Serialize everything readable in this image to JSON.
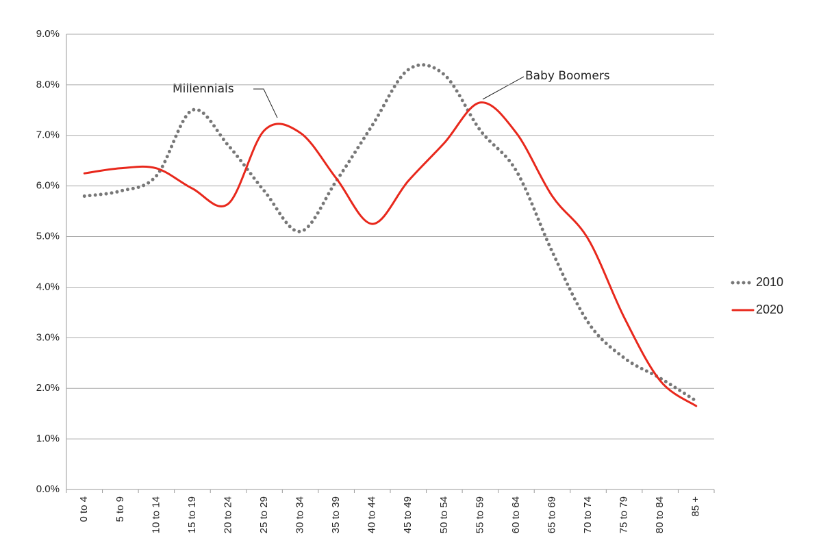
{
  "chart_data": {
    "type": "line",
    "categories": [
      "0 to 4",
      "5 to 9",
      "10 to 14",
      "15 to 19",
      "20 to 24",
      "25 to 29",
      "30 to 34",
      "35 to 39",
      "40 to 44",
      "45 to 49",
      "50 to 54",
      "55 to 59",
      "60 to 64",
      "65 to 69",
      "70 to 74",
      "75 to 79",
      "80 to 84",
      "85 +"
    ],
    "series": [
      {
        "name": "2010",
        "color": "#777777",
        "dash": true,
        "values": [
          5.8,
          5.9,
          6.2,
          7.5,
          6.8,
          5.9,
          5.1,
          6.1,
          7.2,
          8.3,
          8.2,
          7.1,
          6.3,
          4.7,
          3.3,
          2.6,
          2.2,
          1.75
        ]
      },
      {
        "name": "2020",
        "color": "#e8281c",
        "dash": false,
        "values": [
          6.25,
          6.35,
          6.35,
          5.95,
          5.65,
          7.1,
          7.05,
          6.15,
          5.25,
          6.1,
          6.85,
          7.65,
          7.05,
          5.8,
          4.95,
          3.4,
          2.15,
          1.65
        ]
      }
    ],
    "ylim": [
      0,
      9
    ],
    "yticks": [
      {
        "value": 0,
        "label": "0.0%"
      },
      {
        "value": 1,
        "label": "1.0%"
      },
      {
        "value": 2,
        "label": "2.0%"
      },
      {
        "value": 3,
        "label": "3.0%"
      },
      {
        "value": 4,
        "label": "4.0%"
      },
      {
        "value": 5,
        "label": "5.0%"
      },
      {
        "value": 6,
        "label": "6.0%"
      },
      {
        "value": 7,
        "label": "7.0%"
      },
      {
        "value": 8,
        "label": "8.0%"
      },
      {
        "value": 9,
        "label": "9.0%"
      }
    ],
    "grid": true,
    "legend": "right",
    "annotations": [
      "Millennials",
      "Baby Boomers"
    ]
  }
}
